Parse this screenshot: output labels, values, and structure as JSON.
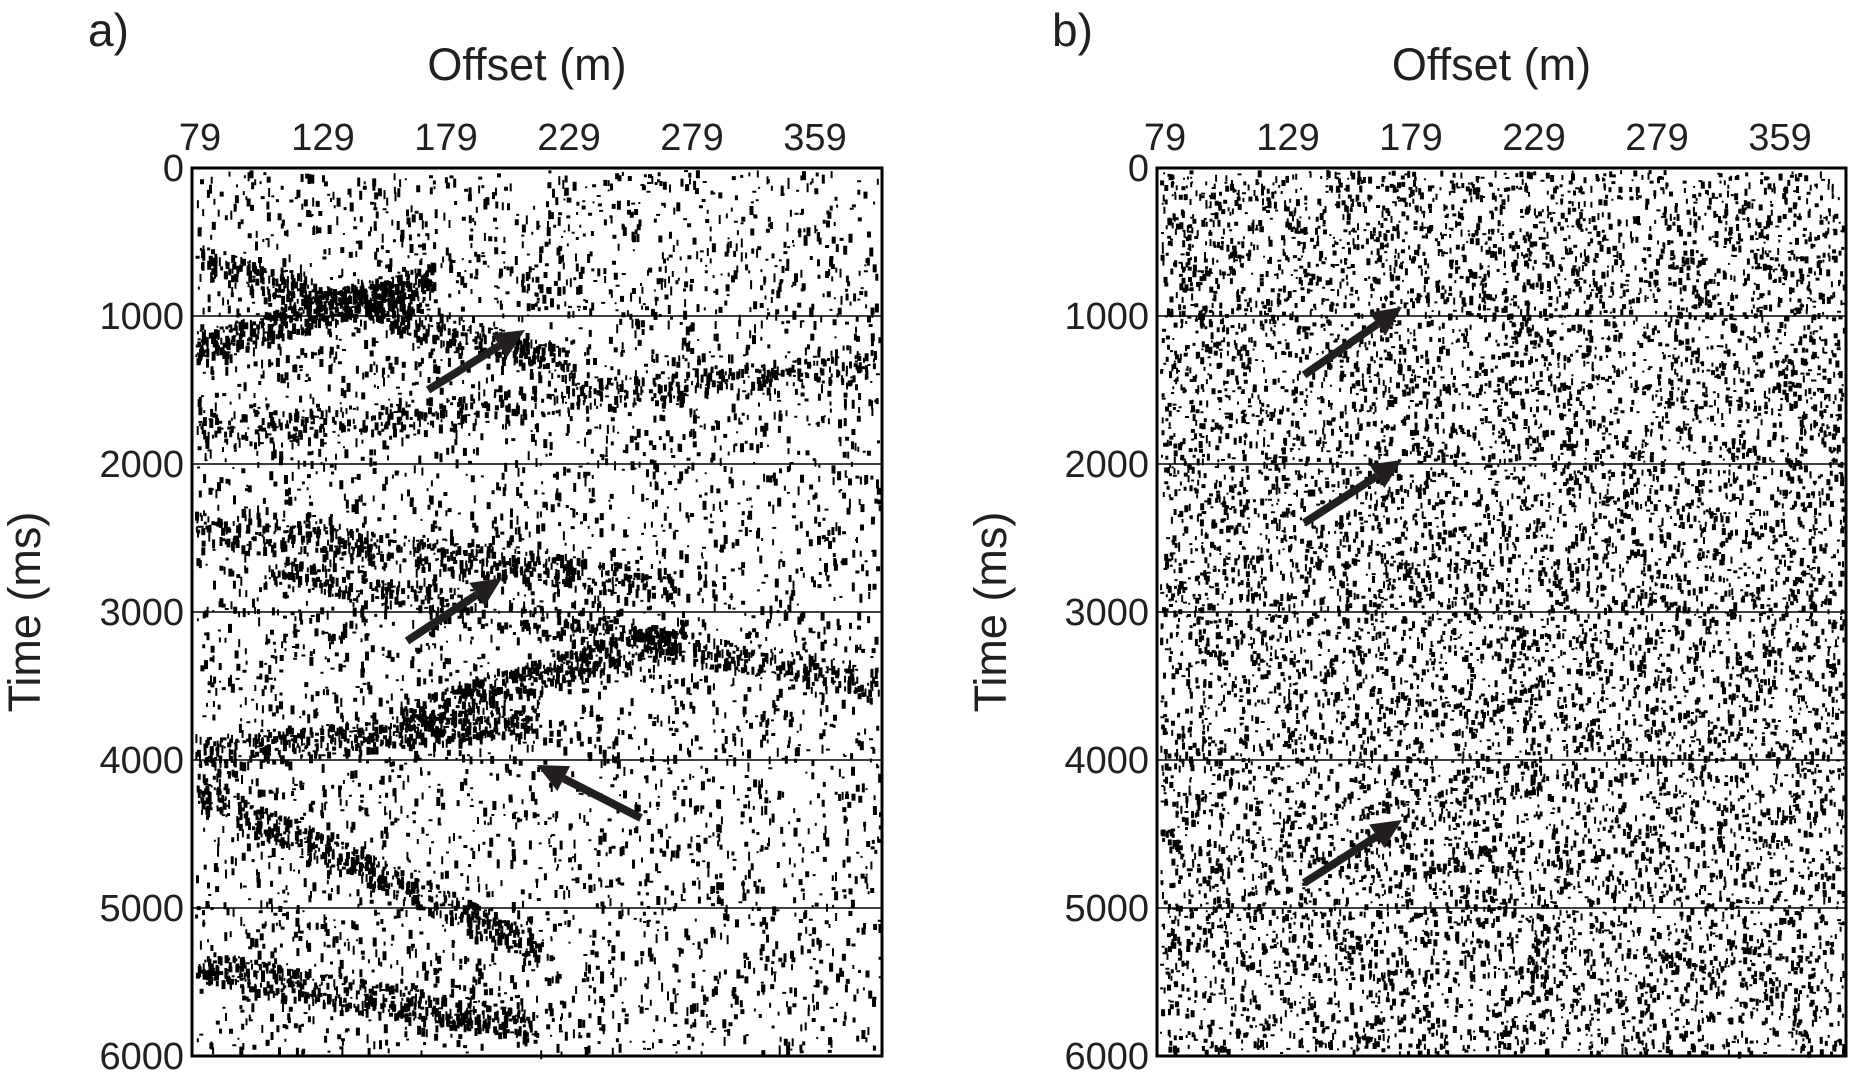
{
  "chart_data": [
    {
      "type": "seismic",
      "panel_label": "a)",
      "x_label": "Offset (m)",
      "y_label": "Time (ms)",
      "categories": [
        "79",
        "129",
        "179",
        "229",
        "279",
        "359"
      ],
      "ylim": [
        0,
        6000
      ],
      "yticks": [
        0,
        1000,
        2000,
        3000,
        4000,
        5000,
        6000
      ],
      "grid": true,
      "color": "#000000"
    },
    {
      "type": "seismic",
      "panel_label": "b)",
      "x_label": "Offset (m)",
      "y_label": "Time (ms)",
      "categories": [
        "79",
        "129",
        "179",
        "229",
        "279",
        "359"
      ],
      "ylim": [
        0,
        6000
      ],
      "yticks": [
        0,
        1000,
        2000,
        3000,
        4000,
        5000,
        6000
      ],
      "grid": true,
      "color": "#000000"
    }
  ]
}
